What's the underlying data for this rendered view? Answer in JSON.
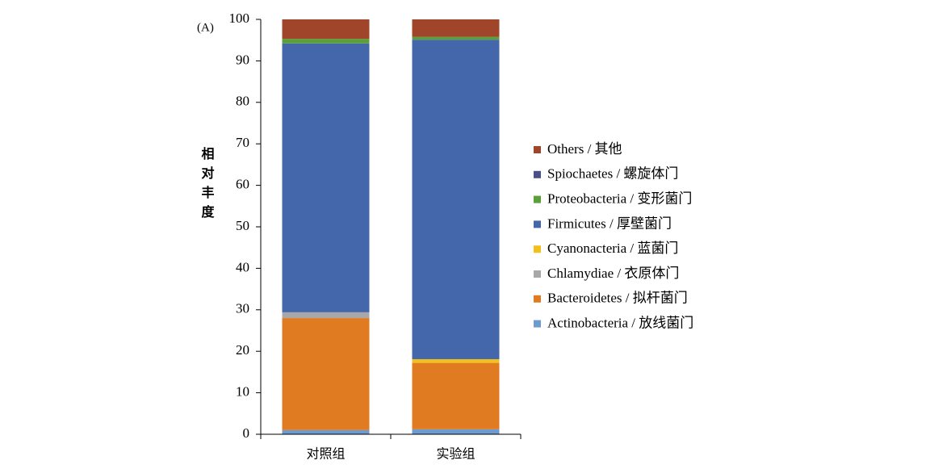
{
  "chart_data": {
    "type": "stacked_bar",
    "annotation": "(A)",
    "y_label": "相对丰度",
    "categories": [
      "对照组",
      "实验组"
    ],
    "series": [
      {
        "name": "Actinobacteria / 放线菌门",
        "color": "#6b9bd1",
        "values": [
          1.0,
          1.2
        ]
      },
      {
        "name": "Bacteroidetes / 拟杆菌门",
        "color": "#e07b22",
        "values": [
          27.0,
          16.0
        ]
      },
      {
        "name": "Chlamydiae / 衣原体门",
        "color": "#a8a8a8",
        "values": [
          1.4,
          0
        ]
      },
      {
        "name": "Cyanonacteria / 蓝菌门",
        "color": "#f2c01d",
        "values": [
          0,
          0.9
        ]
      },
      {
        "name": "Firmicutes / 厚壁菌门",
        "color": "#4466aa",
        "values": [
          64.8,
          77.0
        ]
      },
      {
        "name": "Proteobacteria / 变形菌门",
        "color": "#5aa03a",
        "values": [
          1.1,
          0.7
        ]
      },
      {
        "name": "Spiochaetes / 螺旋体门",
        "color": "#4a4f8a",
        "values": [
          0,
          0
        ]
      },
      {
        "name": "Others / 其他",
        "color": "#a0452a",
        "values": [
          4.7,
          4.2
        ]
      }
    ],
    "ylim": [
      0,
      100
    ],
    "yticks": [
      0,
      10,
      20,
      30,
      40,
      50,
      60,
      70,
      80,
      90,
      100
    ]
  }
}
